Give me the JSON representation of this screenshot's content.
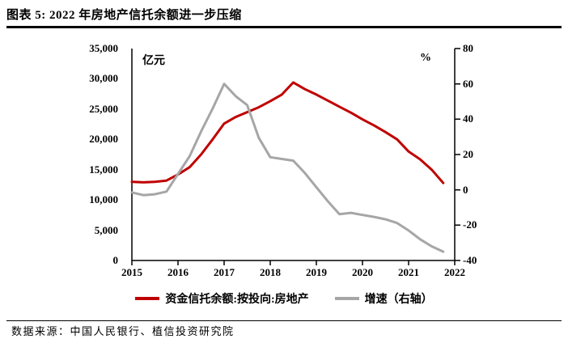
{
  "title": "图表 5: 2022 年房地产信托余额进一步压缩",
  "source": "数据来源：中国人民银行、植信投资研究院",
  "chart_data": {
    "type": "line",
    "title": "2022 年房地产信托余额进一步压缩",
    "unit_left": "亿元",
    "unit_right": "%",
    "grid": false,
    "legend_position": "bottom",
    "quarters": [
      "2015Q4",
      "2016Q1",
      "2016Q2",
      "2016Q3",
      "2016Q4",
      "2017Q1",
      "2017Q2",
      "2017Q3",
      "2017Q4",
      "2018Q1",
      "2018Q2",
      "2018Q3",
      "2018Q4",
      "2019Q1",
      "2019Q2",
      "2019Q3",
      "2019Q4",
      "2020Q1",
      "2020Q2",
      "2020Q3",
      "2020Q4",
      "2021Q1",
      "2021Q2",
      "2021Q3",
      "2021Q4",
      "2022Q1",
      "2022Q2",
      "2022Q3"
    ],
    "x_tick_labels": [
      "2015",
      "2016",
      "2017",
      "2018",
      "2019",
      "2020",
      "2021",
      "2022"
    ],
    "left_axis": {
      "min": 0,
      "max": 35000,
      "step": 5000,
      "tick_labels": [
        "35,000",
        "30,000",
        "25,000",
        "20,000",
        "15,000",
        "10,000",
        "5,000",
        "0"
      ]
    },
    "right_axis": {
      "min": -40,
      "max": 80,
      "step": 20,
      "tick_labels": [
        "80",
        "60",
        "40",
        "20",
        "0",
        "-20",
        "-40"
      ]
    },
    "series": [
      {
        "name": "资金信托余额:按投向:房地产",
        "axis": "left",
        "color": "#c00000",
        "values": [
          13000,
          12900,
          13000,
          13200,
          14200,
          15400,
          17500,
          20000,
          22600,
          23700,
          24500,
          25300,
          26300,
          27400,
          29400,
          28300,
          27400,
          26400,
          25400,
          24400,
          23300,
          22300,
          21200,
          20000,
          18000,
          16700,
          15000,
          12800
        ]
      },
      {
        "name": "增速（右轴）",
        "axis": "right",
        "color": "#a6a6a6",
        "values": [
          -1.5,
          -3,
          -2.5,
          -1,
          9,
          19,
          33,
          46,
          60,
          53,
          48,
          29.5,
          18.5,
          17.5,
          16.5,
          9.5,
          1.5,
          -6.5,
          -13.8,
          -13,
          -14.2,
          -15.3,
          -16.7,
          -18.8,
          -23,
          -28,
          -32,
          -35
        ]
      }
    ]
  }
}
